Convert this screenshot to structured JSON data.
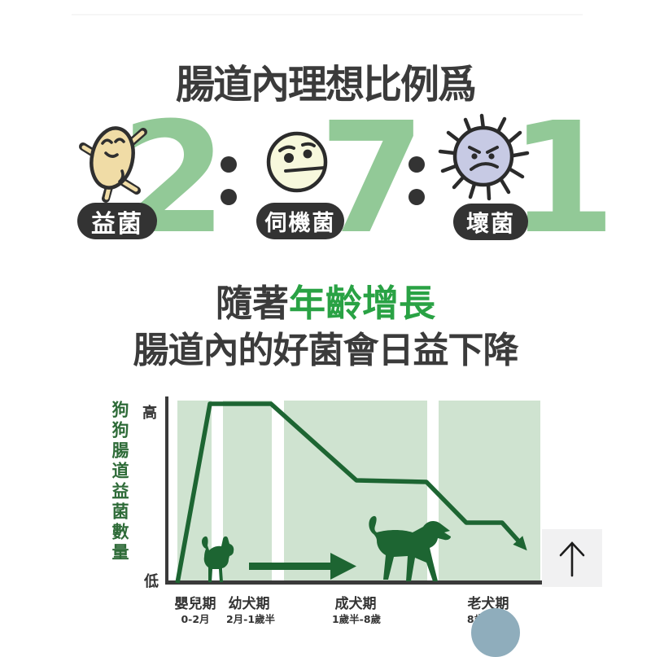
{
  "header": {
    "title": "腸道內理想比例爲"
  },
  "ratio": {
    "separator": ":",
    "number_color": "#92c997",
    "items": [
      {
        "value": "2",
        "label": "益菌",
        "icon": "bean-good-bacteria-icon",
        "icon_color": "#f0dca6"
      },
      {
        "value": "7",
        "label": "伺機菌",
        "icon": "neutral-opportunistic-bacteria-icon",
        "icon_color": "#f7f8dc"
      },
      {
        "value": "1",
        "label": "壞菌",
        "icon": "spiky-bad-bacteria-icon",
        "icon_color": "#c7cae4"
      }
    ]
  },
  "subtitle": {
    "prefix": "隨著",
    "highlight": "年齡增長",
    "line2": "腸道內的好菌會日益下降",
    "highlight_color": "#29a244"
  },
  "chart_data": {
    "type": "line",
    "ylabel": "狗狗腸道益菌數量",
    "y_top": "高",
    "y_bottom": "低",
    "x_stages": [
      {
        "name": "嬰兒期",
        "range": "0-2月"
      },
      {
        "name": "幼犬期",
        "range": "2月-1歲半"
      },
      {
        "name": "成犬期",
        "range": "1歲半-8歲"
      },
      {
        "name": "老犬期",
        "range": "8歲以上"
      }
    ],
    "line_color": "#1d6532",
    "band_color": "#cfe3d0",
    "legend": "none",
    "grid": false,
    "series": [
      {
        "name": "狗狗腸道益菌數量",
        "points": [
          [
            18,
            236
          ],
          [
            58,
            16
          ],
          [
            133,
            16
          ],
          [
            238,
            110
          ],
          [
            324,
            112
          ],
          [
            373,
            162
          ],
          [
            417,
            162
          ],
          [
            443,
            191
          ]
        ],
        "values_norm": [
          0.0,
          1.0,
          1.0,
          0.57,
          0.56,
          0.34,
          0.34,
          0.2
        ]
      }
    ]
  },
  "floating": {
    "scroll_top_icon": "up-arrow-icon",
    "ring_color": "#8fadbc"
  }
}
